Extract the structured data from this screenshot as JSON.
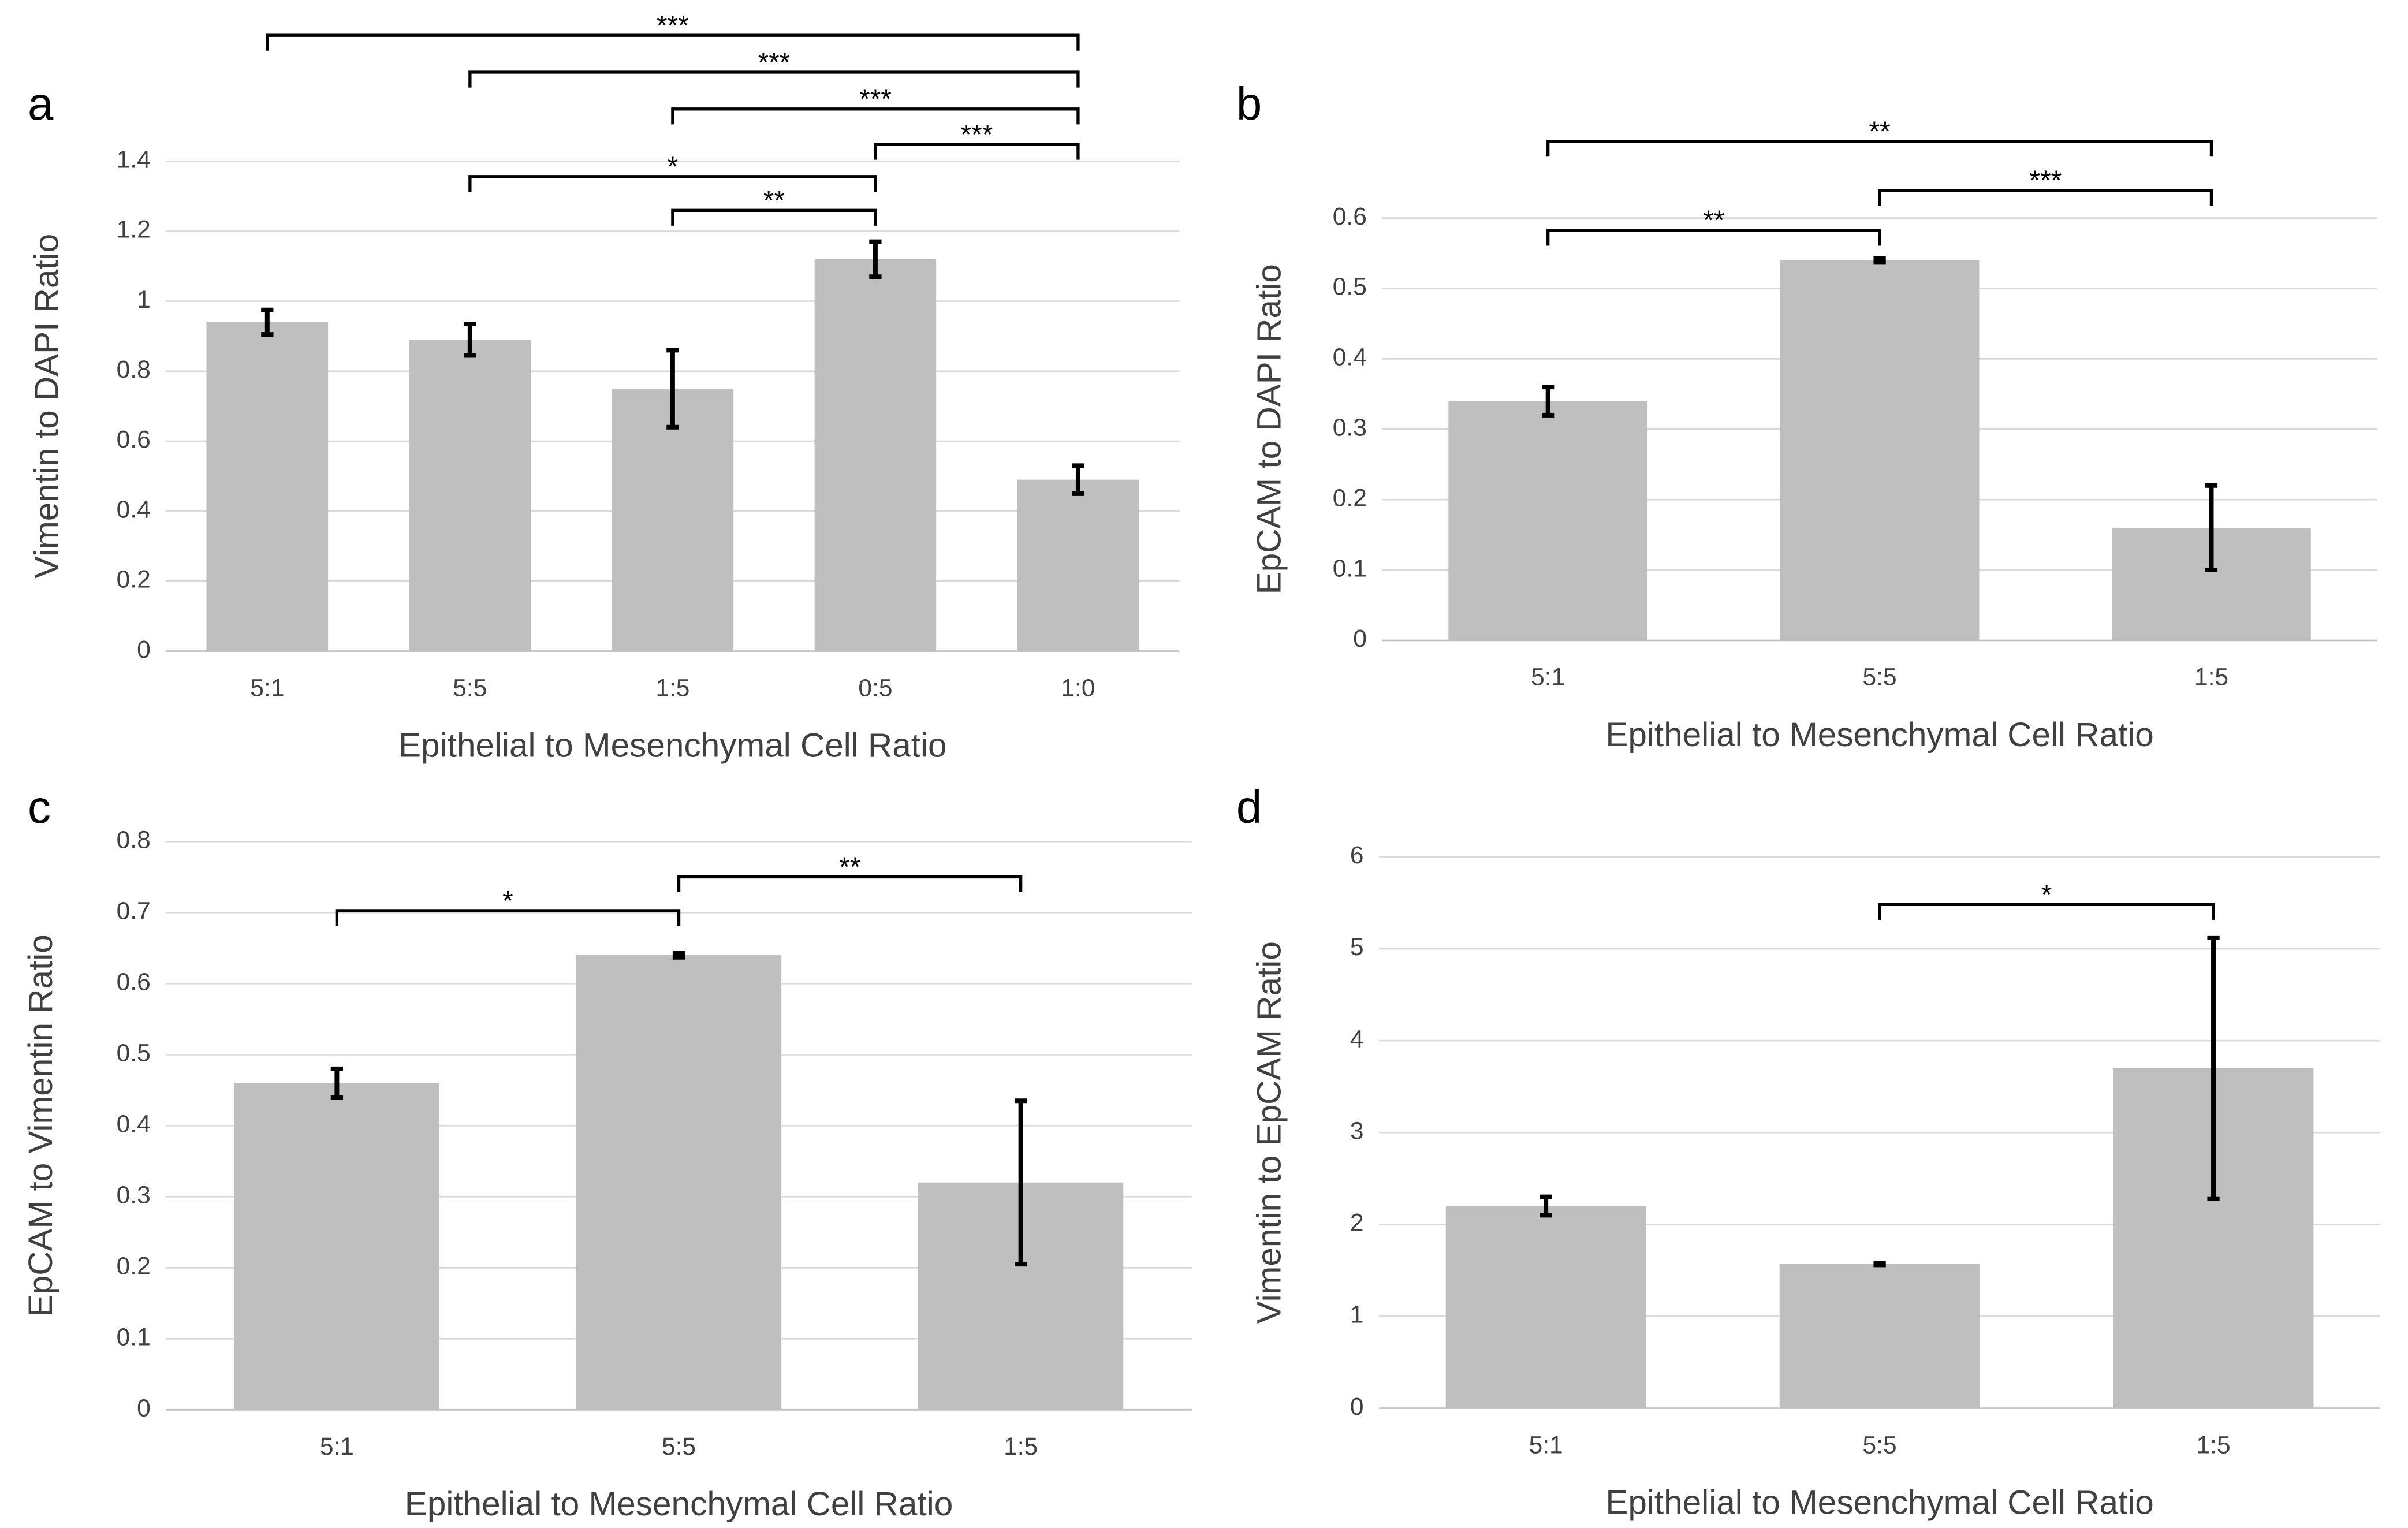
{
  "chart_data": [
    {
      "type": "bar",
      "panel": "a",
      "ylabel": "Vimentin to DAPI Ratio",
      "xlabel": "Epithelial to Mesenchymal Cell Ratio",
      "categories": [
        "5:1",
        "5:5",
        "1:5",
        "0:5",
        "1:0"
      ],
      "values": [
        0.94,
        0.89,
        0.75,
        1.12,
        0.49
      ],
      "errors": [
        0.035,
        0.045,
        0.11,
        0.05,
        0.04
      ],
      "color": "#bfbfbf",
      "ylim": [
        0,
        1.4
      ],
      "yticks": [
        0,
        0.2,
        0.4,
        0.6,
        0.8,
        1,
        1.2,
        1.4
      ],
      "grid": true,
      "significance": [
        {
          "label": "**",
          "between": [
            2,
            3
          ]
        },
        {
          "label": "*",
          "between": [
            1,
            3
          ]
        },
        {
          "label": "***",
          "between": [
            3,
            4
          ]
        },
        {
          "label": "***",
          "between": [
            2,
            4
          ]
        },
        {
          "label": "***",
          "between": [
            1,
            4
          ]
        },
        {
          "label": "***",
          "between": [
            0,
            4
          ]
        }
      ]
    },
    {
      "type": "bar",
      "panel": "b",
      "ylabel": "EpCAM to DAPI Ratio",
      "xlabel": "Epithelial to Mesenchymal Cell Ratio",
      "categories": [
        "5:1",
        "5:5",
        "1:5"
      ],
      "values": [
        0.34,
        0.54,
        0.16
      ],
      "errors": [
        0.02,
        0.003,
        0.06
      ],
      "color": "#bfbfbf",
      "ylim": [
        0,
        0.6
      ],
      "yticks": [
        0,
        0.1,
        0.2,
        0.3,
        0.4,
        0.5,
        0.6
      ],
      "grid": true,
      "significance": [
        {
          "label": "**",
          "between": [
            0,
            1
          ]
        },
        {
          "label": "***",
          "between": [
            1,
            2
          ]
        },
        {
          "label": "**",
          "between": [
            0,
            2
          ]
        }
      ]
    },
    {
      "type": "bar",
      "panel": "c",
      "ylabel": "EpCAM to Vimentin Ratio",
      "xlabel": "Epithelial to Mesenchymal Cell Ratio",
      "categories": [
        "5:1",
        "5:5",
        "1:5"
      ],
      "values": [
        0.46,
        0.64,
        0.32
      ],
      "errors": [
        0.02,
        0.003,
        0.115
      ],
      "color": "#bfbfbf",
      "ylim": [
        0,
        0.8
      ],
      "yticks": [
        0,
        0.1,
        0.2,
        0.3,
        0.4,
        0.5,
        0.6,
        0.7,
        0.8
      ],
      "grid": true,
      "significance": [
        {
          "label": "*",
          "between": [
            0,
            1
          ]
        },
        {
          "label": "**",
          "between": [
            1,
            2
          ]
        }
      ]
    },
    {
      "type": "bar",
      "panel": "d",
      "ylabel": "Vimentin to EpCAM Ratio",
      "xlabel": "Epithelial to Mesenchymal Cell Ratio",
      "categories": [
        "5:1",
        "5:5",
        "1:5"
      ],
      "values": [
        2.2,
        1.57,
        3.7
      ],
      "errors": [
        0.1,
        0.01,
        1.42
      ],
      "color": "#bfbfbf",
      "ylim": [
        0,
        6
      ],
      "yticks": [
        0,
        1,
        2,
        3,
        4,
        5,
        6
      ],
      "grid": true,
      "significance": [
        {
          "label": "*",
          "between": [
            1,
            2
          ]
        }
      ]
    }
  ]
}
